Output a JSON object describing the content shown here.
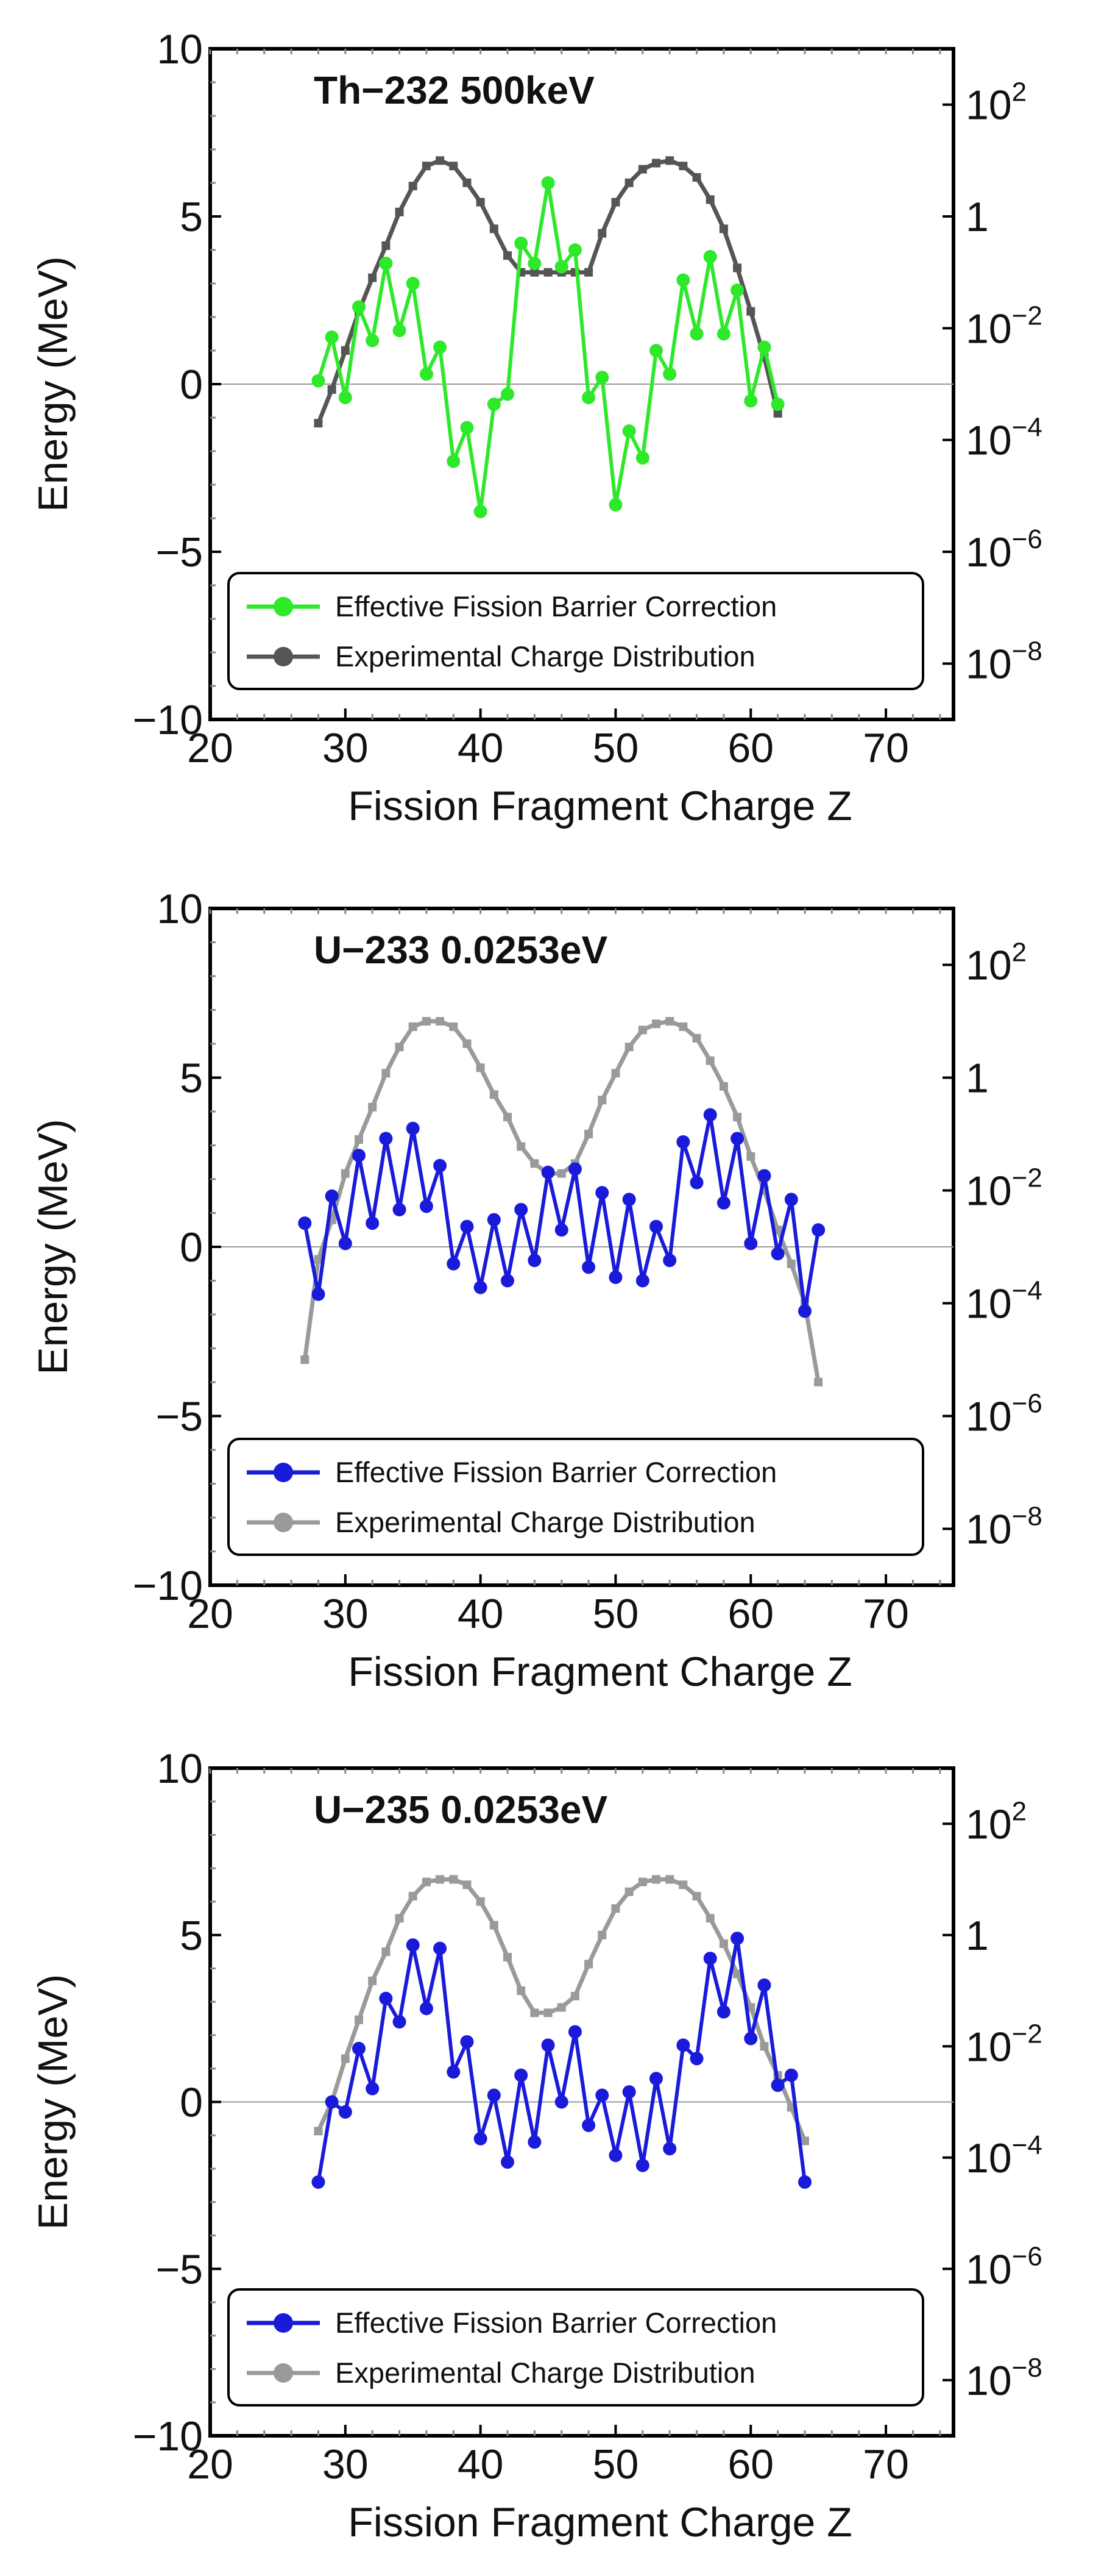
{
  "chart_data": [
    {
      "type": "line",
      "title": "Th−232 500keV",
      "xlabel": "Fission Fragment Charge Z",
      "ylabel": "Energy (MeV)",
      "xlim": [
        20,
        75
      ],
      "ylim": [
        -10,
        10
      ],
      "y2_scale": "log",
      "y2lim": [
        1e-09,
        1000
      ],
      "x_ticks": [
        "20",
        "30",
        "40",
        "50",
        "60",
        "70"
      ],
      "y_ticks": [
        "−10",
        "−5",
        "0",
        "5",
        "10"
      ],
      "y2_ticks": [
        {
          "base": "10",
          "exp": "2",
          "value": 100
        },
        {
          "base": "1",
          "exp": "",
          "value": 1
        },
        {
          "base": "10",
          "exp": "−2",
          "value": 0.01
        },
        {
          "base": "10",
          "exp": "−4",
          "value": 0.0001
        },
        {
          "base": "10",
          "exp": "−6",
          "value": 1e-06
        },
        {
          "base": "10",
          "exp": "−8",
          "value": 1e-08
        }
      ],
      "legend_position": "bottom-left",
      "series": [
        {
          "name": "Effective Fission Barrier Correction",
          "axis": "left",
          "color": "#2ee82a",
          "x": [
            28,
            29,
            30,
            31,
            32,
            33,
            34,
            35,
            36,
            37,
            38,
            39,
            40,
            41,
            42,
            43,
            44,
            45,
            46,
            47,
            48,
            49,
            50,
            51,
            52,
            53,
            54,
            55,
            56,
            57,
            58,
            59,
            60,
            61,
            62
          ],
          "y": [
            0.1,
            1.4,
            -0.4,
            2.3,
            1.3,
            3.6,
            1.6,
            3.0,
            0.3,
            1.1,
            -2.3,
            -1.3,
            -3.8,
            -0.6,
            -0.3,
            4.2,
            3.6,
            6.0,
            3.5,
            4.0,
            -0.4,
            0.2,
            -3.6,
            -1.4,
            -2.2,
            1.0,
            0.3,
            3.1,
            1.5,
            3.8,
            1.5,
            2.8,
            -0.5,
            1.1,
            -0.6
          ]
        },
        {
          "name": "Experimental Charge Distribution",
          "axis": "right",
          "color": "#555555",
          "x": [
            28,
            29,
            30,
            31,
            32,
            33,
            34,
            35,
            36,
            37,
            38,
            39,
            40,
            41,
            42,
            43,
            44,
            45,
            46,
            47,
            48,
            49,
            50,
            51,
            52,
            53,
            54,
            55,
            56,
            57,
            58,
            59,
            60,
            61,
            62
          ],
          "y": [
            0.0002,
            0.0008,
            0.004,
            0.02,
            0.08,
            0.3,
            1.2,
            3.5,
            8,
            10,
            8,
            4,
            1.8,
            0.6,
            0.2,
            0.1,
            0.1,
            0.1,
            0.1,
            0.1,
            0.1,
            0.5,
            1.8,
            4,
            7,
            9,
            10,
            8,
            5,
            2,
            0.6,
            0.12,
            0.02,
            0.003,
            0.0003
          ]
        }
      ]
    },
    {
      "type": "line",
      "title": "U−233 0.0253eV",
      "xlabel": "Fission Fragment Charge Z",
      "ylabel": "Energy (MeV)",
      "xlim": [
        20,
        75
      ],
      "ylim": [
        -10,
        10
      ],
      "y2_scale": "log",
      "y2lim": [
        1e-09,
        1000
      ],
      "x_ticks": [
        "20",
        "30",
        "40",
        "50",
        "60",
        "70"
      ],
      "y_ticks": [
        "−10",
        "−5",
        "0",
        "5",
        "10"
      ],
      "y2_ticks": [
        {
          "base": "10",
          "exp": "2",
          "value": 100
        },
        {
          "base": "1",
          "exp": "",
          "value": 1
        },
        {
          "base": "10",
          "exp": "−2",
          "value": 0.01
        },
        {
          "base": "10",
          "exp": "−4",
          "value": 0.0001
        },
        {
          "base": "10",
          "exp": "−6",
          "value": 1e-06
        },
        {
          "base": "10",
          "exp": "−8",
          "value": 1e-08
        }
      ],
      "legend_position": "bottom-left",
      "series": [
        {
          "name": "Effective Fission Barrier Correction",
          "axis": "left",
          "color": "#1a1adb",
          "x": [
            27,
            28,
            29,
            30,
            31,
            32,
            33,
            34,
            35,
            36,
            37,
            38,
            39,
            40,
            41,
            42,
            43,
            44,
            45,
            46,
            47,
            48,
            49,
            50,
            51,
            52,
            53,
            54,
            55,
            56,
            57,
            58,
            59,
            60,
            61,
            62,
            63,
            64,
            65
          ],
          "y": [
            0.7,
            -1.4,
            1.5,
            0.1,
            2.7,
            0.7,
            3.2,
            1.1,
            3.5,
            1.2,
            2.4,
            -0.5,
            0.6,
            -1.2,
            0.8,
            -1.0,
            1.1,
            -0.4,
            2.2,
            0.5,
            2.3,
            -0.6,
            1.6,
            -0.9,
            1.4,
            -1.0,
            0.6,
            -0.4,
            3.1,
            1.9,
            3.9,
            1.3,
            3.2,
            0.1,
            2.1,
            -0.2,
            1.4,
            -1.9,
            0.5
          ]
        },
        {
          "name": "Experimental Charge Distribution",
          "axis": "right",
          "color": "#9a9a9a",
          "x": [
            27,
            28,
            29,
            30,
            31,
            32,
            33,
            34,
            35,
            36,
            37,
            38,
            39,
            40,
            41,
            42,
            43,
            44,
            45,
            46,
            47,
            48,
            49,
            50,
            51,
            52,
            53,
            54,
            55,
            56,
            57,
            58,
            59,
            60,
            61,
            62,
            63,
            64,
            65
          ],
          "y": [
            1e-05,
            0.0006,
            0.003,
            0.02,
            0.08,
            0.3,
            1.2,
            3.5,
            8,
            10,
            10,
            8,
            4,
            1.5,
            0.5,
            0.2,
            0.06,
            0.03,
            0.02,
            0.02,
            0.03,
            0.1,
            0.4,
            1.2,
            3.5,
            7,
            9,
            10,
            8,
            5,
            2,
            0.7,
            0.2,
            0.04,
            0.01,
            0.002,
            0.0005,
            0.0001,
            4e-06
          ]
        }
      ]
    },
    {
      "type": "line",
      "title": "U−235 0.0253eV",
      "xlabel": "Fission Fragment Charge Z",
      "ylabel": "Energy (MeV)",
      "xlim": [
        20,
        75
      ],
      "ylim": [
        -10,
        10
      ],
      "y2_scale": "log",
      "y2lim": [
        1e-09,
        1000
      ],
      "x_ticks": [
        "20",
        "30",
        "40",
        "50",
        "60",
        "70"
      ],
      "y_ticks": [
        "−10",
        "−5",
        "0",
        "5",
        "10"
      ],
      "y2_ticks": [
        {
          "base": "10",
          "exp": "2",
          "value": 100
        },
        {
          "base": "1",
          "exp": "",
          "value": 1
        },
        {
          "base": "10",
          "exp": "−2",
          "value": 0.01
        },
        {
          "base": "10",
          "exp": "−4",
          "value": 0.0001
        },
        {
          "base": "10",
          "exp": "−6",
          "value": 1e-06
        },
        {
          "base": "10",
          "exp": "−8",
          "value": 1e-08
        }
      ],
      "legend_position": "bottom-left",
      "series": [
        {
          "name": "Effective Fission Barrier Correction",
          "axis": "left",
          "color": "#1a1adb",
          "x": [
            28,
            29,
            30,
            31,
            32,
            33,
            34,
            35,
            36,
            37,
            38,
            39,
            40,
            41,
            42,
            43,
            44,
            45,
            46,
            47,
            48,
            49,
            50,
            51,
            52,
            53,
            54,
            55,
            56,
            57,
            58,
            59,
            60,
            61,
            62,
            63,
            64
          ],
          "y": [
            -2.4,
            0.0,
            -0.3,
            1.6,
            0.4,
            3.1,
            2.4,
            4.7,
            2.8,
            4.6,
            0.9,
            1.8,
            -1.1,
            0.2,
            -1.8,
            0.8,
            -1.2,
            1.7,
            0.0,
            2.1,
            -0.7,
            0.2,
            -1.6,
            0.3,
            -1.9,
            0.7,
            -1.4,
            1.7,
            1.3,
            4.3,
            2.7,
            4.9,
            1.9,
            3.5,
            0.5,
            0.8,
            -2.4
          ]
        },
        {
          "name": "Experimental Charge Distribution",
          "axis": "right",
          "color": "#9a9a9a",
          "x": [
            28,
            29,
            30,
            31,
            32,
            33,
            34,
            35,
            36,
            37,
            38,
            39,
            40,
            41,
            42,
            43,
            44,
            45,
            46,
            47,
            48,
            49,
            50,
            51,
            52,
            53,
            54,
            55,
            56,
            57,
            58,
            59,
            60,
            61,
            62,
            63,
            64
          ],
          "y": [
            0.0003,
            0.001,
            0.006,
            0.03,
            0.15,
            0.5,
            2,
            5,
            9,
            10,
            10,
            8,
            4,
            1.5,
            0.4,
            0.1,
            0.04,
            0.04,
            0.05,
            0.08,
            0.3,
            1,
            3,
            6,
            9,
            10,
            10,
            8,
            5,
            2,
            0.7,
            0.2,
            0.05,
            0.01,
            0.003,
            0.0008,
            0.0002
          ]
        }
      ]
    }
  ]
}
